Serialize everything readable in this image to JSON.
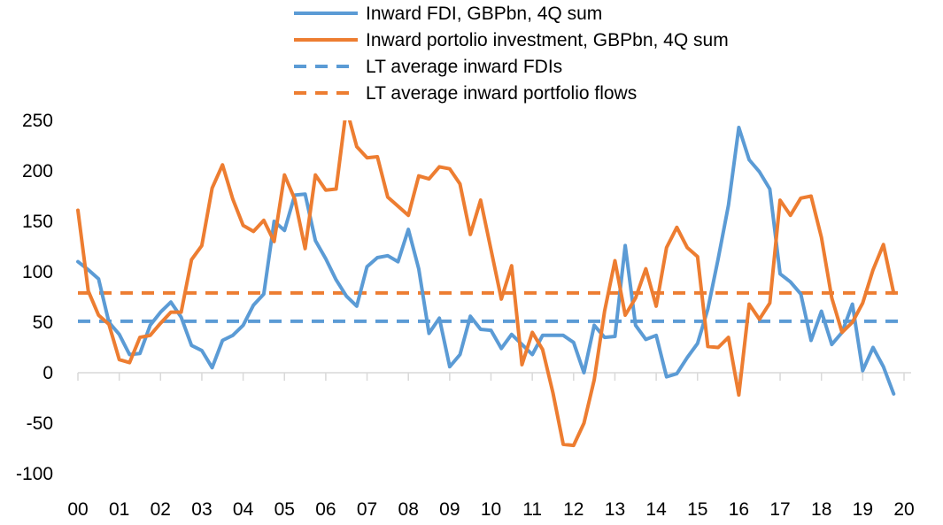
{
  "chart_data": {
    "type": "line",
    "title": "",
    "xlabel": "",
    "ylabel": "",
    "ylim": [
      -100,
      250
    ],
    "yticks": [
      250,
      200,
      150,
      100,
      50,
      0,
      -50,
      -100
    ],
    "ytick_labels": [
      "250",
      "200",
      "150",
      "100",
      "50",
      "0",
      "-50",
      "-100"
    ],
    "xlim": [
      0,
      20
    ],
    "xtick_labels": [
      "00",
      "01",
      "02",
      "03",
      "04",
      "05",
      "06",
      "07",
      "08",
      "09",
      "10",
      "11",
      "12",
      "13",
      "14",
      "15",
      "16",
      "17",
      "18",
      "19",
      "20"
    ],
    "legend_position": "top",
    "series": [
      {
        "name": "Inward FDI, GBPbn, 4Q sum",
        "color": "#5b9bd5",
        "style": "solid",
        "x": [
          0,
          0.25,
          0.5,
          0.75,
          1,
          1.25,
          1.5,
          1.75,
          2,
          2.25,
          2.5,
          2.75,
          3,
          3.25,
          3.5,
          3.75,
          4,
          4.25,
          4.5,
          4.75,
          5,
          5.25,
          5.5,
          5.75,
          6,
          6.25,
          6.5,
          6.75,
          7,
          7.25,
          7.5,
          7.75,
          8,
          8.25,
          8.5,
          8.75,
          9,
          9.25,
          9.5,
          9.75,
          10,
          10.25,
          10.5,
          10.75,
          11,
          11.25,
          11.5,
          11.75,
          12,
          12.25,
          12.5,
          12.75,
          13,
          13.25,
          13.5,
          13.75,
          14,
          14.25,
          14.5,
          14.75,
          15,
          15.25,
          15.5,
          15.75,
          16,
          16.25,
          16.5,
          16.75,
          17,
          17.25,
          17.5,
          17.75,
          18,
          18.25,
          18.5,
          18.75,
          19,
          19.25,
          19.5,
          19.75
        ],
        "y": [
          110,
          102,
          93,
          50,
          38,
          18,
          19,
          47,
          60,
          70,
          55,
          27,
          22,
          5,
          32,
          37,
          47,
          67,
          78,
          150,
          141,
          176,
          177,
          131,
          113,
          92,
          76,
          66,
          105,
          114,
          116,
          110,
          142,
          103,
          39,
          54,
          6,
          18,
          56,
          43,
          42,
          24,
          38,
          28,
          18,
          37,
          37,
          37,
          30,
          0,
          47,
          35,
          36,
          126,
          47,
          33,
          37,
          -4,
          -1,
          15,
          29,
          63,
          113,
          166,
          243,
          211,
          199,
          182,
          98,
          90,
          78,
          32,
          61,
          28,
          40,
          68,
          2,
          25,
          6,
          -21
        ]
      },
      {
        "name": "Inward portolio investment, GBPbn, 4Q sum",
        "color": "#ed7d31",
        "style": "solid",
        "x": [
          0,
          0.25,
          0.5,
          0.75,
          1,
          1.25,
          1.5,
          1.75,
          2,
          2.25,
          2.5,
          2.75,
          3,
          3.25,
          3.5,
          3.75,
          4,
          4.25,
          4.5,
          4.75,
          5,
          5.25,
          5.5,
          5.75,
          6,
          6.25,
          6.5,
          6.75,
          7,
          7.25,
          7.5,
          7.75,
          8,
          8.25,
          8.5,
          8.75,
          9,
          9.25,
          9.5,
          9.75,
          10,
          10.25,
          10.5,
          10.75,
          11,
          11.25,
          11.5,
          11.75,
          12,
          12.25,
          12.5,
          12.75,
          13,
          13.25,
          13.5,
          13.75,
          14,
          14.25,
          14.5,
          14.75,
          15,
          15.25,
          15.5,
          15.75,
          16,
          16.25,
          16.5,
          16.75,
          17,
          17.25,
          17.5,
          17.75,
          18,
          18.25,
          18.5,
          18.75,
          19,
          19.25,
          19.5,
          19.75
        ],
        "y": [
          161,
          81,
          57,
          48,
          13,
          10,
          35,
          37,
          49,
          60,
          60,
          112,
          126,
          183,
          206,
          172,
          146,
          140,
          151,
          130,
          196,
          172,
          123,
          196,
          181,
          182,
          262,
          224,
          213,
          214,
          174,
          165,
          156,
          195,
          192,
          204,
          202,
          187,
          137,
          171,
          122,
          73,
          106,
          8,
          40,
          23,
          -20,
          -71,
          -72,
          -50,
          -7,
          61,
          111,
          57,
          74,
          103,
          66,
          124,
          144,
          124,
          115,
          26,
          25,
          35,
          -22,
          68,
          53,
          69,
          171,
          156,
          173,
          175,
          134,
          74,
          40,
          50,
          69,
          102,
          127,
          79
        ]
      },
      {
        "name": "LT average inward FDIs",
        "color": "#5b9bd5",
        "style": "dashed",
        "x": [
          0,
          20
        ],
        "y": [
          51,
          51
        ]
      },
      {
        "name": "LT average inward portfolio flows",
        "color": "#ed7d31",
        "style": "dashed",
        "x": [
          0,
          20
        ],
        "y": [
          79,
          79
        ]
      }
    ]
  }
}
